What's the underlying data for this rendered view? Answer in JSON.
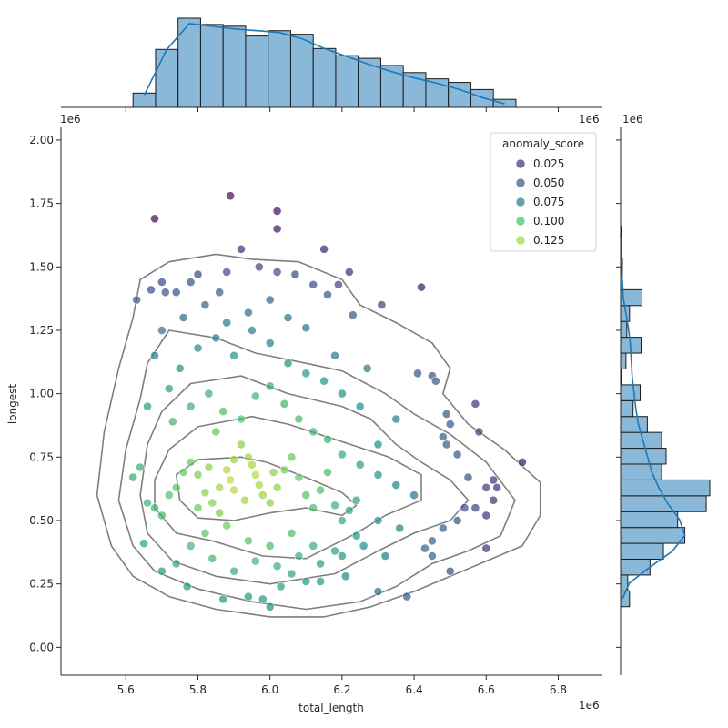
{
  "chart_data": {
    "type": "scatter",
    "title": "",
    "xlabel": "total_length",
    "ylabel": "longest",
    "x_offset_label": "1e6",
    "y_offset_label": "1e6",
    "top_hist_offset_label_left": "1e6",
    "top_hist_offset_label_right": "1e6",
    "xlim": [
      5.42,
      6.92
    ],
    "ylim": [
      -0.11,
      2.05
    ],
    "x_ticks": [
      "5.6",
      "5.8",
      "6.0",
      "6.2",
      "6.4",
      "6.6",
      "6.8"
    ],
    "y_ticks": [
      "0.00",
      "0.25",
      "0.50",
      "0.75",
      "1.00",
      "1.25",
      "1.50",
      "1.75",
      "2.00"
    ],
    "grid": false,
    "legend": {
      "title": "anomaly_score",
      "placement": "top-right",
      "entries": [
        {
          "label": "0.025",
          "color": "#46327e"
        },
        {
          "label": "0.050",
          "color": "#365c8d"
        },
        {
          "label": "0.075",
          "color": "#277f8e"
        },
        {
          "label": "0.100",
          "color": "#4ac16d"
        },
        {
          "label": "0.125",
          "color": "#a0da39"
        }
      ]
    },
    "colormap": "viridis",
    "series": [
      {
        "kind": "scatter",
        "note_points_representative": true,
        "points": [
          [
            5.63,
            1.37
          ],
          [
            5.67,
            1.41
          ],
          [
            5.7,
            1.44
          ],
          [
            5.71,
            1.4
          ],
          [
            5.74,
            1.4
          ],
          [
            5.78,
            1.44
          ],
          [
            5.8,
            1.47
          ],
          [
            5.86,
            1.4
          ],
          [
            5.88,
            1.48
          ],
          [
            5.92,
            1.57
          ],
          [
            5.97,
            1.5
          ],
          [
            6.0,
            1.37
          ],
          [
            6.02,
            1.48
          ],
          [
            6.07,
            1.47
          ],
          [
            6.12,
            1.43
          ],
          [
            6.16,
            1.39
          ],
          [
            6.19,
            1.43
          ],
          [
            6.22,
            1.48
          ],
          [
            6.23,
            1.31
          ],
          [
            6.42,
            1.42
          ],
          [
            5.68,
            1.69
          ],
          [
            5.89,
            1.78
          ],
          [
            6.02,
            1.72
          ],
          [
            6.02,
            1.65
          ],
          [
            6.15,
            1.57
          ],
          [
            6.31,
            1.35
          ],
          [
            6.27,
            1.1
          ],
          [
            6.41,
            1.08
          ],
          [
            6.45,
            1.07
          ],
          [
            6.46,
            1.05
          ],
          [
            6.49,
            0.92
          ],
          [
            6.5,
            0.88
          ],
          [
            6.57,
            0.96
          ],
          [
            6.58,
            0.85
          ],
          [
            6.48,
            0.83
          ],
          [
            6.49,
            0.8
          ],
          [
            6.52,
            0.76
          ],
          [
            6.55,
            0.67
          ],
          [
            6.6,
            0.63
          ],
          [
            6.62,
            0.66
          ],
          [
            6.63,
            0.63
          ],
          [
            6.62,
            0.58
          ],
          [
            6.6,
            0.52
          ],
          [
            6.57,
            0.55
          ],
          [
            6.54,
            0.55
          ],
          [
            6.52,
            0.5
          ],
          [
            6.48,
            0.47
          ],
          [
            6.45,
            0.42
          ],
          [
            6.43,
            0.39
          ],
          [
            6.45,
            0.36
          ],
          [
            6.5,
            0.3
          ],
          [
            6.6,
            0.39
          ],
          [
            6.7,
            0.73
          ],
          [
            6.38,
            0.2
          ],
          [
            6.3,
            0.22
          ],
          [
            6.21,
            0.28
          ],
          [
            6.14,
            0.26
          ],
          [
            6.1,
            0.26
          ],
          [
            6.06,
            0.29
          ],
          [
            6.03,
            0.24
          ],
          [
            6.0,
            0.16
          ],
          [
            5.98,
            0.19
          ],
          [
            5.94,
            0.2
          ],
          [
            5.87,
            0.19
          ],
          [
            5.77,
            0.24
          ],
          [
            5.74,
            0.33
          ],
          [
            5.7,
            0.3
          ],
          [
            5.65,
            0.41
          ],
          [
            5.62,
            0.67
          ],
          [
            5.64,
            0.71
          ],
          [
            5.66,
            0.57
          ],
          [
            5.68,
            0.55
          ],
          [
            5.7,
            0.52
          ],
          [
            5.72,
            0.6
          ],
          [
            5.74,
            0.63
          ],
          [
            5.76,
            0.69
          ],
          [
            5.78,
            0.73
          ],
          [
            5.8,
            0.68
          ],
          [
            5.82,
            0.61
          ],
          [
            5.84,
            0.57
          ],
          [
            5.86,
            0.63
          ],
          [
            5.88,
            0.7
          ],
          [
            5.9,
            0.74
          ],
          [
            5.92,
            0.8
          ],
          [
            5.94,
            0.75
          ],
          [
            5.96,
            0.68
          ],
          [
            5.98,
            0.6
          ],
          [
            6.0,
            0.57
          ],
          [
            6.02,
            0.63
          ],
          [
            6.04,
            0.7
          ],
          [
            6.06,
            0.75
          ],
          [
            6.08,
            0.67
          ],
          [
            6.1,
            0.6
          ],
          [
            6.12,
            0.55
          ],
          [
            6.14,
            0.62
          ],
          [
            6.16,
            0.69
          ],
          [
            6.18,
            0.56
          ],
          [
            6.2,
            0.5
          ],
          [
            6.22,
            0.54
          ],
          [
            6.24,
            0.58
          ],
          [
            5.73,
            0.89
          ],
          [
            5.78,
            0.95
          ],
          [
            5.83,
            1.0
          ],
          [
            5.87,
            0.93
          ],
          [
            5.92,
            0.9
          ],
          [
            5.96,
            0.99
          ],
          [
            6.0,
            1.03
          ],
          [
            6.04,
            0.96
          ],
          [
            6.08,
            0.9
          ],
          [
            6.12,
            0.85
          ],
          [
            6.16,
            0.82
          ],
          [
            6.2,
            0.76
          ],
          [
            6.25,
            0.72
          ],
          [
            6.3,
            0.68
          ],
          [
            6.35,
            0.64
          ],
          [
            6.4,
            0.6
          ],
          [
            6.3,
            0.8
          ],
          [
            6.35,
            0.9
          ],
          [
            6.25,
            0.95
          ],
          [
            6.2,
            1.0
          ],
          [
            5.75,
            1.1
          ],
          [
            5.8,
            1.18
          ],
          [
            5.85,
            1.22
          ],
          [
            5.9,
            1.15
          ],
          [
            5.95,
            1.25
          ],
          [
            6.0,
            1.2
          ],
          [
            6.05,
            1.12
          ],
          [
            6.1,
            1.08
          ],
          [
            6.15,
            1.05
          ],
          [
            6.18,
            1.15
          ],
          [
            5.7,
            1.25
          ],
          [
            5.76,
            1.3
          ],
          [
            5.82,
            1.35
          ],
          [
            5.88,
            1.28
          ],
          [
            5.94,
            1.32
          ],
          [
            6.05,
            1.3
          ],
          [
            6.1,
            1.26
          ],
          [
            5.68,
            1.15
          ],
          [
            5.72,
            1.02
          ],
          [
            5.66,
            0.95
          ],
          [
            5.82,
            0.45
          ],
          [
            5.88,
            0.48
          ],
          [
            5.94,
            0.42
          ],
          [
            6.0,
            0.4
          ],
          [
            6.06,
            0.45
          ],
          [
            6.12,
            0.4
          ],
          [
            6.18,
            0.38
          ],
          [
            6.24,
            0.44
          ],
          [
            6.3,
            0.5
          ],
          [
            6.36,
            0.47
          ],
          [
            5.78,
            0.4
          ],
          [
            5.84,
            0.35
          ],
          [
            5.9,
            0.3
          ],
          [
            5.96,
            0.34
          ],
          [
            6.02,
            0.32
          ],
          [
            6.08,
            0.36
          ],
          [
            6.14,
            0.33
          ],
          [
            6.2,
            0.36
          ],
          [
            6.26,
            0.4
          ],
          [
            6.32,
            0.36
          ],
          [
            5.85,
            0.85
          ],
          [
            5.9,
            0.62
          ],
          [
            5.8,
            0.55
          ],
          [
            5.86,
            0.53
          ],
          [
            5.93,
            0.58
          ],
          [
            5.97,
            0.64
          ],
          [
            6.01,
            0.69
          ],
          [
            5.95,
            0.72
          ],
          [
            5.89,
            0.66
          ],
          [
            5.83,
            0.71
          ]
        ]
      }
    ],
    "top_histogram": {
      "bin_start": 5.62,
      "bin_width": 0.0625,
      "relative_heights": [
        0.16,
        0.65,
        1.0,
        0.93,
        0.91,
        0.8,
        0.86,
        0.82,
        0.66,
        0.58,
        0.55,
        0.47,
        0.39,
        0.32,
        0.28,
        0.2,
        0.09
      ],
      "kde_heights": [
        0.14,
        0.65,
        0.94,
        0.91,
        0.88,
        0.86,
        0.84,
        0.77,
        0.66,
        0.57,
        0.48,
        0.4,
        0.33,
        0.27,
        0.2,
        0.11,
        0.04
      ]
    },
    "right_histogram": {
      "bin_start": 0.16,
      "bin_width": 0.0625,
      "relative_heights": [
        0.1,
        0.08,
        0.33,
        0.48,
        0.72,
        0.64,
        0.96,
        1.0,
        0.46,
        0.51,
        0.46,
        0.3,
        0.14,
        0.22,
        0.01,
        0.06,
        0.23,
        0.07,
        0.1,
        0.24,
        0.02,
        0.02,
        0.01,
        0.01
      ],
      "kde_heights": [
        0.02,
        0.1,
        0.33,
        0.58,
        0.72,
        0.66,
        0.53,
        0.43,
        0.35,
        0.3,
        0.25,
        0.2,
        0.17,
        0.15,
        0.13,
        0.12,
        0.11,
        0.09,
        0.06,
        0.03,
        0.02,
        0.01,
        0.01,
        0.0
      ]
    },
    "kde_contours": [
      [
        [
          5.92,
          0.75
        ],
        [
          5.99,
          0.73
        ],
        [
          6.1,
          0.67
        ],
        [
          6.2,
          0.61
        ],
        [
          6.24,
          0.56
        ],
        [
          6.2,
          0.52
        ],
        [
          6.1,
          0.55
        ],
        [
          6.0,
          0.53
        ],
        [
          5.9,
          0.5
        ],
        [
          5.8,
          0.51
        ],
        [
          5.75,
          0.58
        ],
        [
          5.74,
          0.68
        ],
        [
          5.8,
          0.74
        ]
      ],
      [
        [
          5.8,
          0.87
        ],
        [
          5.95,
          0.91
        ],
        [
          6.05,
          0.88
        ],
        [
          6.18,
          0.82
        ],
        [
          6.33,
          0.75
        ],
        [
          6.42,
          0.68
        ],
        [
          6.42,
          0.58
        ],
        [
          6.32,
          0.52
        ],
        [
          6.24,
          0.45
        ],
        [
          6.1,
          0.35
        ],
        [
          5.98,
          0.36
        ],
        [
          5.84,
          0.42
        ],
        [
          5.74,
          0.45
        ],
        [
          5.68,
          0.55
        ],
        [
          5.68,
          0.66
        ],
        [
          5.72,
          0.78
        ]
      ],
      [
        [
          5.78,
          1.04
        ],
        [
          5.92,
          1.07
        ],
        [
          6.05,
          1.0
        ],
        [
          6.2,
          0.95
        ],
        [
          6.28,
          0.9
        ],
        [
          6.35,
          0.8
        ],
        [
          6.42,
          0.73
        ],
        [
          6.5,
          0.66
        ],
        [
          6.55,
          0.58
        ],
        [
          6.5,
          0.5
        ],
        [
          6.4,
          0.45
        ],
        [
          6.3,
          0.38
        ],
        [
          6.18,
          0.29
        ],
        [
          6.0,
          0.25
        ],
        [
          5.85,
          0.28
        ],
        [
          5.73,
          0.34
        ],
        [
          5.66,
          0.45
        ],
        [
          5.64,
          0.6
        ],
        [
          5.66,
          0.8
        ],
        [
          5.7,
          0.93
        ]
      ],
      [
        [
          5.72,
          1.25
        ],
        [
          5.85,
          1.22
        ],
        [
          5.96,
          1.16
        ],
        [
          6.1,
          1.12
        ],
        [
          6.2,
          1.09
        ],
        [
          6.32,
          1.0
        ],
        [
          6.4,
          0.92
        ],
        [
          6.5,
          0.84
        ],
        [
          6.6,
          0.73
        ],
        [
          6.68,
          0.58
        ],
        [
          6.64,
          0.44
        ],
        [
          6.55,
          0.38
        ],
        [
          6.45,
          0.33
        ],
        [
          6.35,
          0.24
        ],
        [
          6.25,
          0.18
        ],
        [
          6.1,
          0.15
        ],
        [
          5.95,
          0.18
        ],
        [
          5.8,
          0.23
        ],
        [
          5.68,
          0.3
        ],
        [
          5.62,
          0.4
        ],
        [
          5.58,
          0.58
        ],
        [
          5.6,
          0.78
        ],
        [
          5.64,
          0.98
        ],
        [
          5.66,
          1.12
        ]
      ],
      [
        [
          5.72,
          1.52
        ],
        [
          5.85,
          1.55
        ],
        [
          5.95,
          1.53
        ],
        [
          6.08,
          1.52
        ],
        [
          6.2,
          1.45
        ],
        [
          6.25,
          1.35
        ],
        [
          6.35,
          1.28
        ],
        [
          6.45,
          1.2
        ],
        [
          6.5,
          1.1
        ],
        [
          6.48,
          1.0
        ],
        [
          6.55,
          0.88
        ],
        [
          6.65,
          0.78
        ],
        [
          6.75,
          0.65
        ],
        [
          6.75,
          0.52
        ],
        [
          6.7,
          0.4
        ],
        [
          6.6,
          0.34
        ],
        [
          6.5,
          0.28
        ],
        [
          6.4,
          0.22
        ],
        [
          6.28,
          0.16
        ],
        [
          6.15,
          0.12
        ],
        [
          6.0,
          0.12
        ],
        [
          5.85,
          0.15
        ],
        [
          5.72,
          0.2
        ],
        [
          5.62,
          0.28
        ],
        [
          5.56,
          0.4
        ],
        [
          5.52,
          0.6
        ],
        [
          5.54,
          0.85
        ],
        [
          5.58,
          1.1
        ],
        [
          5.62,
          1.3
        ],
        [
          5.64,
          1.45
        ]
      ]
    ]
  }
}
